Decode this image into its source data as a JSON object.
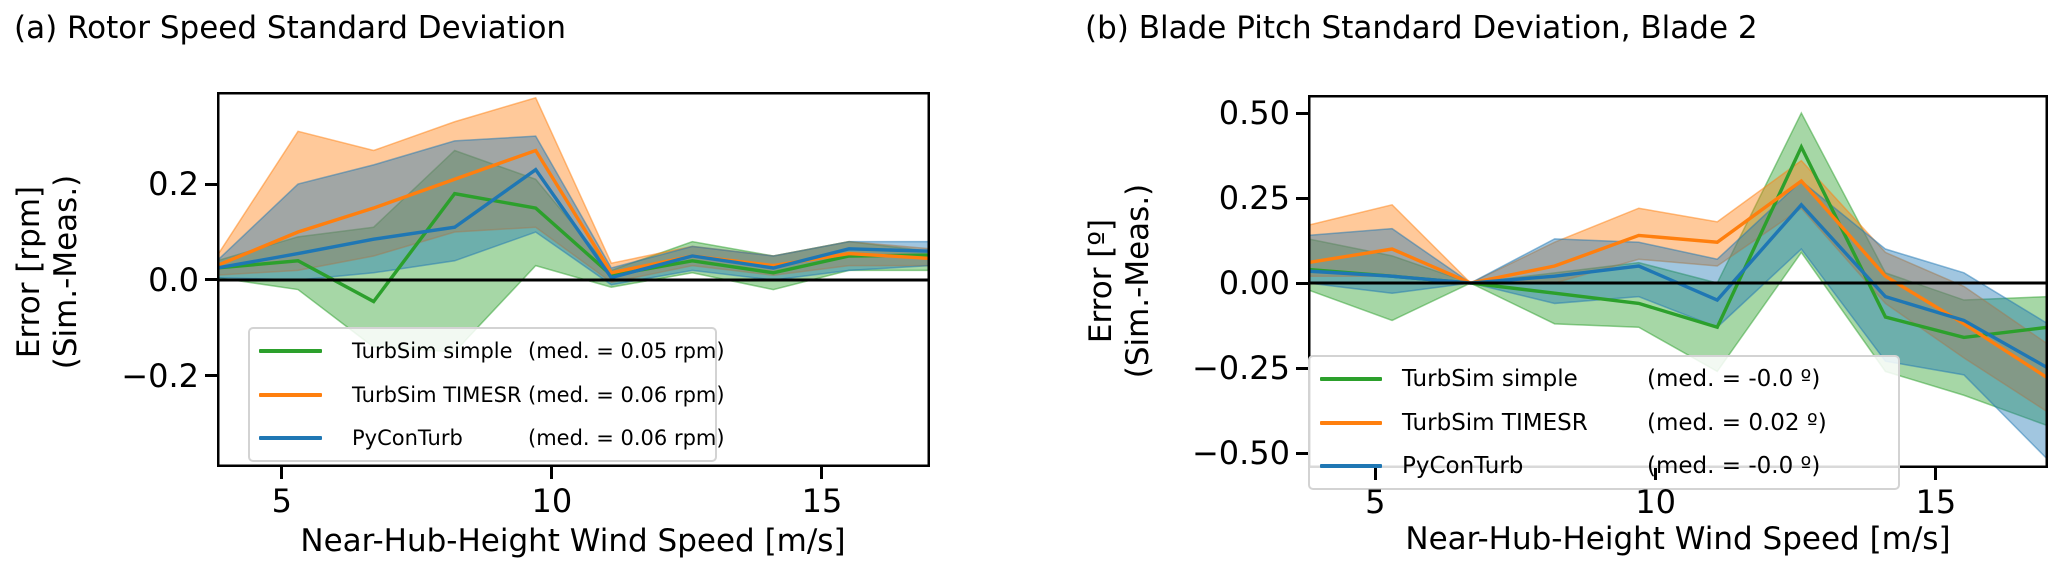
{
  "figure": {
    "background": "#ffffff",
    "axis_color": "#000000",
    "legend_border_color": "#d3d3d3"
  },
  "chart_data": [
    {
      "type": "line",
      "panel": "a",
      "title": "(a) Rotor Speed Standard Deviation",
      "xlabel": "Near-Hub-Height Wind Speed [m/s]",
      "ylabel_line1": "Error [rpm]",
      "ylabel_line2": "(Sim.-Meas.)",
      "xlim": [
        3.8,
        17.0
      ],
      "ylim": [
        -0.39,
        0.392
      ],
      "grid": false,
      "zero_line": true,
      "legend_position": "lower left inside axes",
      "x": [
        3.8,
        5.3,
        6.7,
        8.2,
        9.7,
        11.1,
        12.6,
        14.1,
        15.5,
        17.0
      ],
      "xticks": [
        {
          "label": "5",
          "value": 5
        },
        {
          "label": "10",
          "value": 10
        },
        {
          "label": "15",
          "value": 15
        }
      ],
      "yticks": [
        {
          "label": "0.2",
          "value": 0.2
        },
        {
          "label": "0.0",
          "value": 0.0
        },
        {
          "label": "−0.2",
          "value": -0.2
        }
      ],
      "series": [
        {
          "name": "TurbSim simple",
          "med_label": "(med. = 0.05 rpm)",
          "color": "#2ca02c",
          "values": [
            0.025,
            0.04,
            -0.045,
            0.18,
            0.15,
            0.01,
            0.04,
            0.015,
            0.05,
            0.052
          ],
          "band_top": [
            0.04,
            0.09,
            0.11,
            0.27,
            0.21,
            0.02,
            0.08,
            0.05,
            0.08,
            0.06
          ],
          "band_bottom": [
            0.005,
            -0.02,
            -0.14,
            -0.15,
            0.03,
            -0.015,
            0.015,
            -0.02,
            0.02,
            0.02
          ]
        },
        {
          "name": "TurbSim TIMESR",
          "med_label": "(med. = 0.06 rpm)",
          "color": "#ff7f0e",
          "values": [
            0.03,
            0.1,
            0.15,
            0.21,
            0.27,
            0.015,
            0.05,
            0.03,
            0.055,
            0.045
          ],
          "band_top": [
            0.05,
            0.31,
            0.27,
            0.33,
            0.38,
            0.035,
            0.07,
            0.05,
            0.08,
            0.065
          ],
          "band_bottom": [
            0.01,
            0.02,
            0.05,
            0.1,
            0.11,
            -0.005,
            0.03,
            0.01,
            0.03,
            0.03
          ]
        },
        {
          "name": "PyConTurb",
          "med_label": "(med. = 0.06 rpm)",
          "color": "#1f77b4",
          "values": [
            0.025,
            0.055,
            0.085,
            0.11,
            0.23,
            0.005,
            0.05,
            0.025,
            0.065,
            0.06
          ],
          "band_top": [
            0.04,
            0.2,
            0.24,
            0.29,
            0.3,
            0.025,
            0.07,
            0.05,
            0.08,
            0.08
          ],
          "band_bottom": [
            0.005,
            0.0,
            0.015,
            0.04,
            0.1,
            -0.01,
            0.02,
            0.0,
            0.02,
            0.03
          ]
        }
      ]
    },
    {
      "type": "line",
      "panel": "b",
      "title": "(b) Blade Pitch Standard Deviation, Blade 2",
      "xlabel": "Near-Hub-Height Wind Speed [m/s]",
      "ylabel_line1": "Error [º]",
      "ylabel_line2": "(Sim.-Meas.)",
      "xlim": [
        3.8,
        17.0
      ],
      "ylim": [
        -0.544,
        0.553
      ],
      "grid": false,
      "zero_line": true,
      "legend_position": "lower left inside axes",
      "x": [
        3.8,
        5.3,
        6.7,
        8.2,
        9.7,
        11.1,
        12.6,
        14.1,
        15.5,
        17.0
      ],
      "xticks": [
        {
          "label": "5",
          "value": 5
        },
        {
          "label": "10",
          "value": 10
        },
        {
          "label": "15",
          "value": 15
        }
      ],
      "yticks": [
        {
          "label": "0.50",
          "value": 0.5
        },
        {
          "label": "0.25",
          "value": 0.25
        },
        {
          "label": "0.00",
          "value": 0.0
        },
        {
          "label": "−0.25",
          "value": -0.25
        },
        {
          "label": "−0.50",
          "value": -0.5
        }
      ],
      "series": [
        {
          "name": "TurbSim simple",
          "med_label": "(med. = -0.0 º)",
          "color": "#2ca02c",
          "values": [
            0.04,
            0.02,
            0.0,
            -0.03,
            -0.06,
            -0.13,
            0.4,
            -0.1,
            -0.16,
            -0.13
          ],
          "band_top": [
            0.13,
            0.08,
            0.0,
            0.03,
            0.06,
            0.0,
            0.5,
            0.03,
            -0.05,
            -0.04
          ],
          "band_bottom": [
            -0.02,
            -0.11,
            0.0,
            -0.12,
            -0.13,
            -0.26,
            0.09,
            -0.26,
            -0.33,
            -0.42
          ]
        },
        {
          "name": "TurbSim TIMESR",
          "med_label": "(med. = 0.02 º)",
          "color": "#ff7f0e",
          "values": [
            0.06,
            0.1,
            0.0,
            0.05,
            0.14,
            0.12,
            0.3,
            0.02,
            -0.12,
            -0.28
          ],
          "band_top": [
            0.17,
            0.23,
            0.0,
            0.12,
            0.22,
            0.18,
            0.36,
            0.09,
            -0.01,
            -0.18
          ],
          "band_bottom": [
            0.02,
            0.02,
            0.0,
            0.0,
            0.07,
            0.05,
            0.22,
            -0.06,
            -0.22,
            -0.38
          ]
        },
        {
          "name": "PyConTurb",
          "med_label": "(med. = -0.0 º)",
          "color": "#1f77b4",
          "values": [
            0.035,
            0.02,
            0.0,
            0.02,
            0.05,
            -0.05,
            0.23,
            -0.04,
            -0.11,
            -0.25
          ],
          "band_top": [
            0.14,
            0.16,
            0.0,
            0.13,
            0.12,
            0.07,
            0.3,
            0.1,
            0.03,
            -0.12
          ],
          "band_bottom": [
            0.0,
            -0.03,
            0.0,
            -0.06,
            -0.04,
            -0.13,
            0.1,
            -0.23,
            -0.27,
            -0.52
          ]
        }
      ]
    }
  ]
}
